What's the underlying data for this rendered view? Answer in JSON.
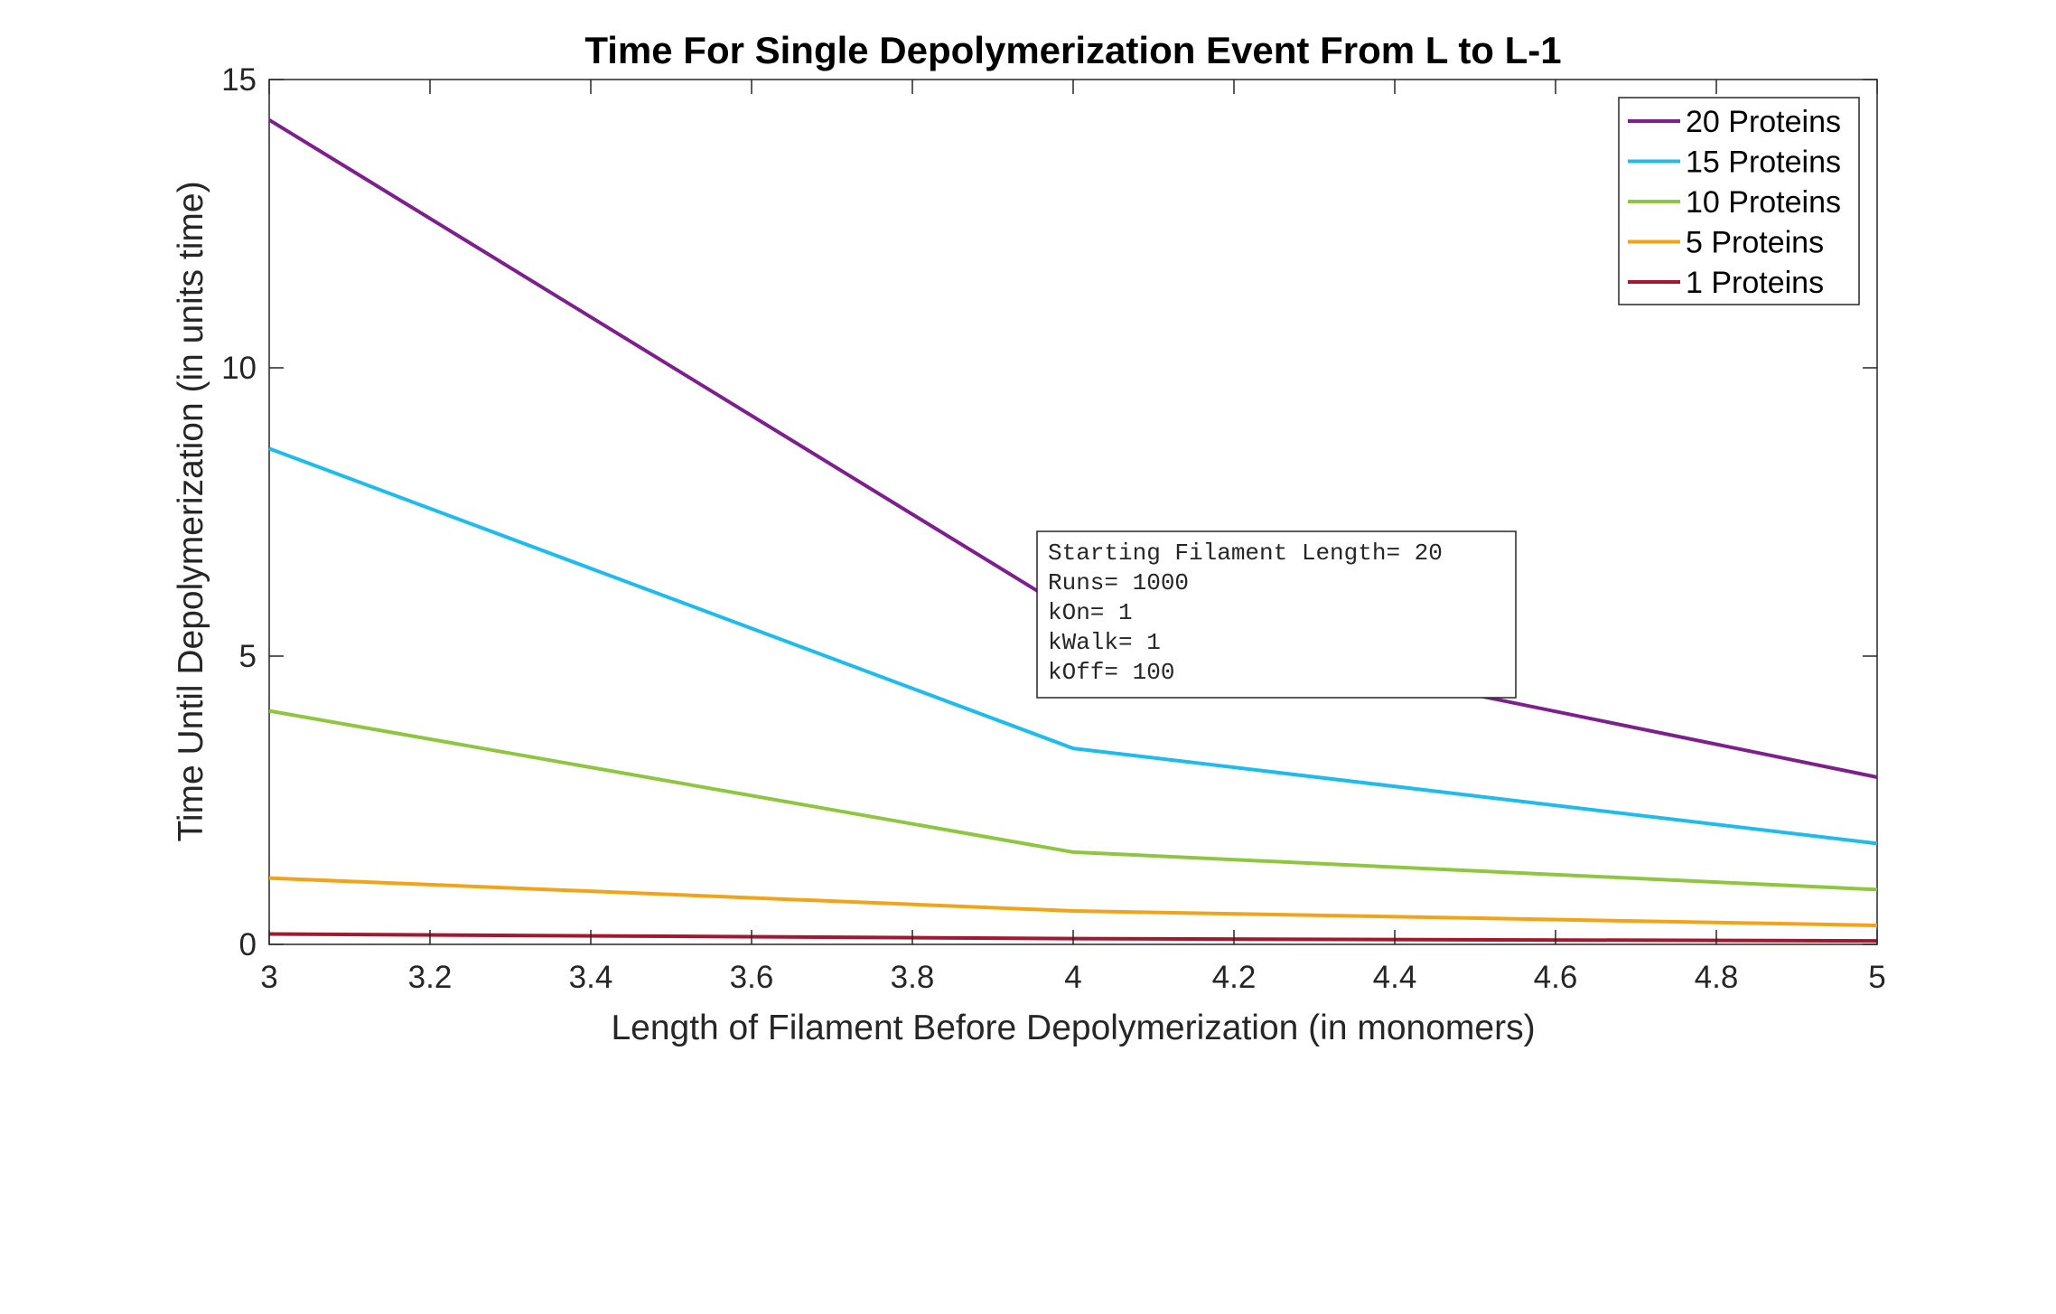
{
  "chart_data": {
    "type": "line",
    "title": "Time For Single Depolymerization Event From L to L-1",
    "xlabel": "Length of Filament Before Depolymerization (in monomers)",
    "ylabel": "Time Until Depolymerization (in units time)",
    "xlim": [
      3,
      5
    ],
    "ylim": [
      0,
      15
    ],
    "xticks": [
      "3",
      "3.2",
      "3.4",
      "3.6",
      "3.8",
      "4",
      "4.2",
      "4.4",
      "4.6",
      "4.8",
      "5"
    ],
    "yticks": [
      "0",
      "5",
      "10",
      "15"
    ],
    "x": [
      3,
      4,
      5
    ],
    "grid": false,
    "legend_position": "top-right",
    "series": [
      {
        "name": "20 Proteins",
        "color": "#7E1F8E",
        "values": [
          14.3,
          5.75,
          2.9
        ]
      },
      {
        "name": "15 Proteins",
        "color": "#1DBBEE",
        "values": [
          8.6,
          3.4,
          1.75
        ]
      },
      {
        "name": "10 Proteins",
        "color": "#8EC63F",
        "values": [
          4.05,
          1.6,
          0.95
        ]
      },
      {
        "name": "5 Proteins",
        "color": "#F2A317",
        "values": [
          1.15,
          0.58,
          0.33
        ]
      },
      {
        "name": "1 Proteins",
        "color": "#A2182F",
        "values": [
          0.18,
          0.1,
          0.06
        ]
      }
    ],
    "annotation": {
      "lines": [
        "Starting Filament Length=  20",
        "Runs= 1000",
        "kOn= 1",
        "kWalk= 1",
        "kOff= 100"
      ]
    }
  }
}
